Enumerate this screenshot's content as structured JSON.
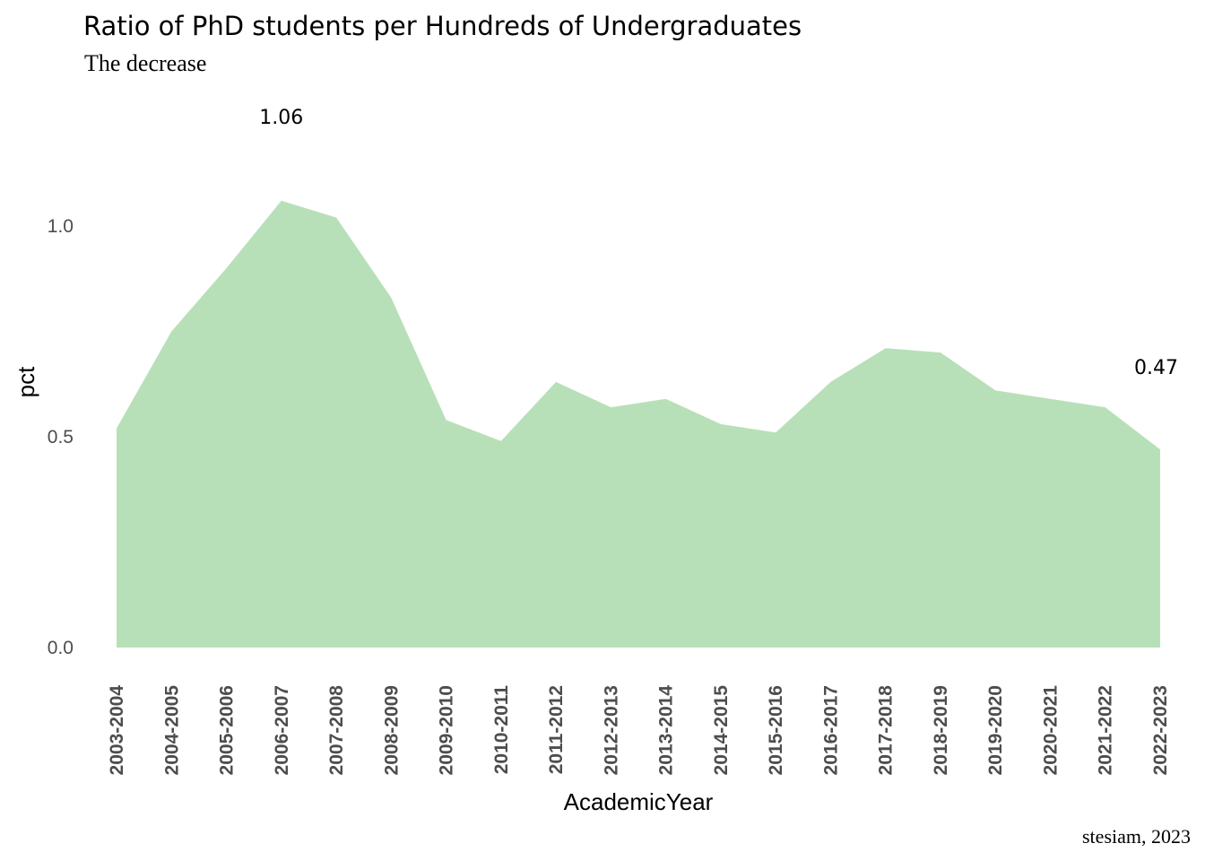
{
  "chart_data": {
    "type": "area",
    "title": "Ratio of PhD students per Hundreds of Undergraduates",
    "subtitle": "The decrease",
    "caption": "stesiam, 2023",
    "xlabel": "AcademicYear",
    "ylabel": "pct",
    "categories": [
      "2003-2004",
      "2004-2005",
      "2005-2006",
      "2006-2007",
      "2007-2008",
      "2008-2009",
      "2009-2010",
      "2010-2011",
      "2011-2012",
      "2012-2013",
      "2013-2014",
      "2014-2015",
      "2015-2016",
      "2016-2017",
      "2017-2018",
      "2018-2019",
      "2019-2020",
      "2020-2021",
      "2021-2022",
      "2022-2023"
    ],
    "values": [
      0.52,
      0.75,
      0.9,
      1.06,
      1.02,
      0.83,
      0.54,
      0.49,
      0.63,
      0.57,
      0.59,
      0.53,
      0.51,
      0.63,
      0.71,
      0.7,
      0.61,
      0.59,
      0.57,
      0.47
    ],
    "yticks": [
      0.0,
      0.5,
      1.0
    ],
    "ytick_labels": [
      "0.0",
      "0.5",
      "1.0"
    ],
    "ylim": [
      0,
      1.06
    ],
    "annotations": [
      {
        "category": "2006-2007",
        "text": "1.06"
      },
      {
        "category": "2022-2023",
        "text": "0.47"
      }
    ],
    "fill_color": "#b8e0b8",
    "grid": false,
    "legend": "none"
  }
}
